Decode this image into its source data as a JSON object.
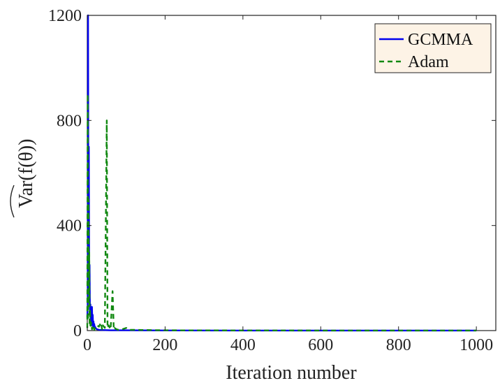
{
  "chart_data": {
    "type": "line",
    "xlabel": "Iteration number",
    "ylabel": "Var(f(θ))",
    "xlim": [
      0,
      1050
    ],
    "ylim": [
      0,
      1200
    ],
    "xticks": [
      0,
      200,
      400,
      600,
      800,
      1000
    ],
    "yticks": [
      0,
      400,
      800,
      1200
    ],
    "grid": false,
    "legend": "top-right",
    "legend_bg": "#fdf3e6",
    "series": [
      {
        "name": "GCMMA",
        "color": "#0000ee",
        "dash": "solid",
        "x": [
          0,
          1,
          2,
          3,
          4,
          5,
          6,
          7,
          8,
          9,
          10,
          11,
          12,
          13,
          14,
          15,
          16,
          17,
          18,
          19,
          20,
          22,
          25,
          30,
          40,
          60,
          100,
          200,
          400,
          600,
          800,
          1000
        ],
        "y": [
          50,
          100,
          1200,
          300,
          700,
          150,
          250,
          60,
          100,
          30,
          70,
          20,
          90,
          40,
          60,
          15,
          35,
          10,
          25,
          8,
          15,
          8,
          5,
          3,
          2,
          1,
          1,
          0.5,
          0.3,
          0.2,
          0.2,
          0.2
        ]
      },
      {
        "name": "Adam",
        "color": "#118811",
        "dash": "dashed",
        "x": [
          0,
          1,
          2,
          3,
          4,
          5,
          6,
          7,
          8,
          10,
          12,
          15,
          18,
          20,
          25,
          30,
          35,
          38,
          40,
          45,
          50,
          52,
          55,
          60,
          65,
          68,
          70,
          75,
          80,
          90,
          100,
          110,
          150,
          200,
          400,
          600,
          800,
          1000
        ],
        "y": [
          10,
          900,
          40,
          500,
          100,
          300,
          20,
          80,
          10,
          30,
          5,
          20,
          3,
          10,
          20,
          15,
          30,
          5,
          20,
          10,
          800,
          10,
          20,
          5,
          150,
          5,
          10,
          5,
          3,
          5,
          10,
          3,
          2,
          1,
          0.5,
          0.3,
          0.3,
          0.3
        ]
      }
    ]
  }
}
